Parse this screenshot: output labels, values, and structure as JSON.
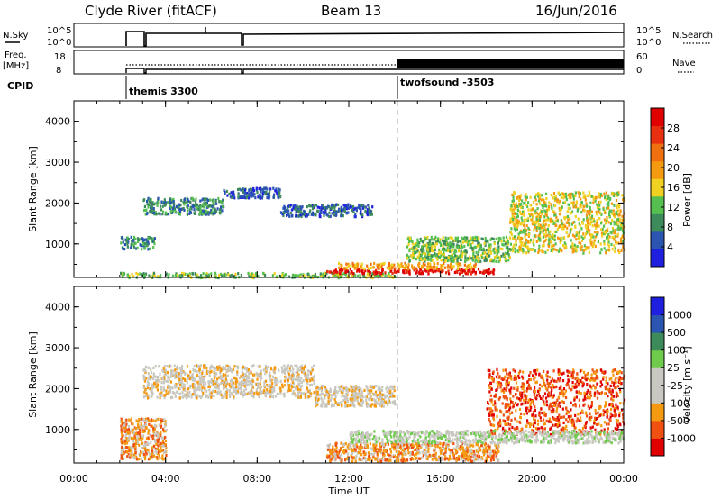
{
  "header": {
    "station": "Clyde River (fitACF)",
    "beam": "Beam 13",
    "date": "16/Jun/2016"
  },
  "status_panel": {
    "nsky_label": "N.Sky",
    "nsky_ticks": [
      "10^5",
      "10^0"
    ],
    "nsearch_label": "N.Search",
    "nsearch_ticks": [
      "10^5",
      "10^0"
    ],
    "freq_label_1": "Freq.",
    "freq_label_2": "[MHz]",
    "freq_ticks": [
      "18",
      "8"
    ],
    "nave_label": "Nave",
    "nave_ticks": [
      "60",
      "0"
    ],
    "cpid_label": "CPID",
    "cpid_1": "themis 3300",
    "cpid_2": "twofsound -3503"
  },
  "colors": {
    "power": [
      "#1f1fe0",
      "#2a55b0",
      "#3d8a5a",
      "#55c050",
      "#f0d020",
      "#f59a10",
      "#f07010",
      "#e83010",
      "#e00000"
    ],
    "velocity": [
      "#e00000",
      "#f05010",
      "#f59a10",
      "#c8c8c0",
      "#c8c8c0",
      "#6ecb4b",
      "#3d8a5a",
      "#2a55b0",
      "#1f1fe0"
    ]
  },
  "chart_data": [
    {
      "type": "heatmap",
      "name": "power",
      "ylabel": "Slant Range [km]",
      "ylim": [
        180,
        4500
      ],
      "yticks": [
        "1000",
        "2000",
        "3000",
        "4000"
      ],
      "xlim": [
        0,
        24
      ],
      "colorbar_label": "Power [dB]",
      "colorbar_ticks": [
        "4",
        "8",
        "12",
        "16",
        "20",
        "24",
        "28"
      ],
      "regions": [
        {
          "t": [
            2.0,
            14.0
          ],
          "r": [
            200,
            320
          ],
          "level": 3
        },
        {
          "t": [
            11.0,
            18.5
          ],
          "r": [
            300,
            420
          ],
          "level": 8
        },
        {
          "t": [
            11.5,
            17.5
          ],
          "r": [
            420,
            560
          ],
          "level": 5
        },
        {
          "t": [
            3.0,
            6.5
          ],
          "r": [
            1750,
            2150
          ],
          "level": 2
        },
        {
          "t": [
            6.5,
            9.0
          ],
          "r": [
            2150,
            2400
          ],
          "level": 1
        },
        {
          "t": [
            9.0,
            13.0
          ],
          "r": [
            1700,
            2000
          ],
          "level": 1
        },
        {
          "t": [
            2.0,
            3.5
          ],
          "r": [
            900,
            1200
          ],
          "level": 2
        },
        {
          "t": [
            19.0,
            24.0
          ],
          "r": [
            800,
            2300
          ],
          "level": 4
        },
        {
          "t": [
            14.5,
            19.0
          ],
          "r": [
            600,
            1200
          ],
          "level": 3
        }
      ]
    },
    {
      "type": "heatmap",
      "name": "velocity",
      "ylabel": "Slant Range [km]",
      "ylim": [
        180,
        4500
      ],
      "yticks": [
        "1000",
        "2000",
        "3000",
        "4000"
      ],
      "xlim": [
        0,
        24
      ],
      "xticks": [
        "00:00",
        "04:00",
        "08:00",
        "12:00",
        "16:00",
        "20:00",
        "00:00"
      ],
      "xlabel": "Time UT",
      "colorbar_label": "Velocity [m s⁻¹]",
      "colorbar_ticks": [
        "1000",
        "500",
        "100",
        "25",
        "-25",
        "-100",
        "-500",
        "-1000"
      ],
      "regions": [
        {
          "t": [
            2.0,
            4.0
          ],
          "r": [
            300,
            1300
          ],
          "level": 2
        },
        {
          "t": [
            3.0,
            10.5
          ],
          "r": [
            1800,
            2600
          ],
          "level": 3
        },
        {
          "t": [
            10.5,
            14.0
          ],
          "r": [
            1600,
            2100
          ],
          "level": 3
        },
        {
          "t": [
            11.0,
            18.5
          ],
          "r": [
            250,
            700
          ],
          "level": 2
        },
        {
          "t": [
            18.0,
            24.0
          ],
          "r": [
            900,
            2500
          ],
          "level": 1
        },
        {
          "t": [
            12.0,
            24.0
          ],
          "r": [
            700,
            1000
          ],
          "level": 4
        }
      ]
    }
  ]
}
